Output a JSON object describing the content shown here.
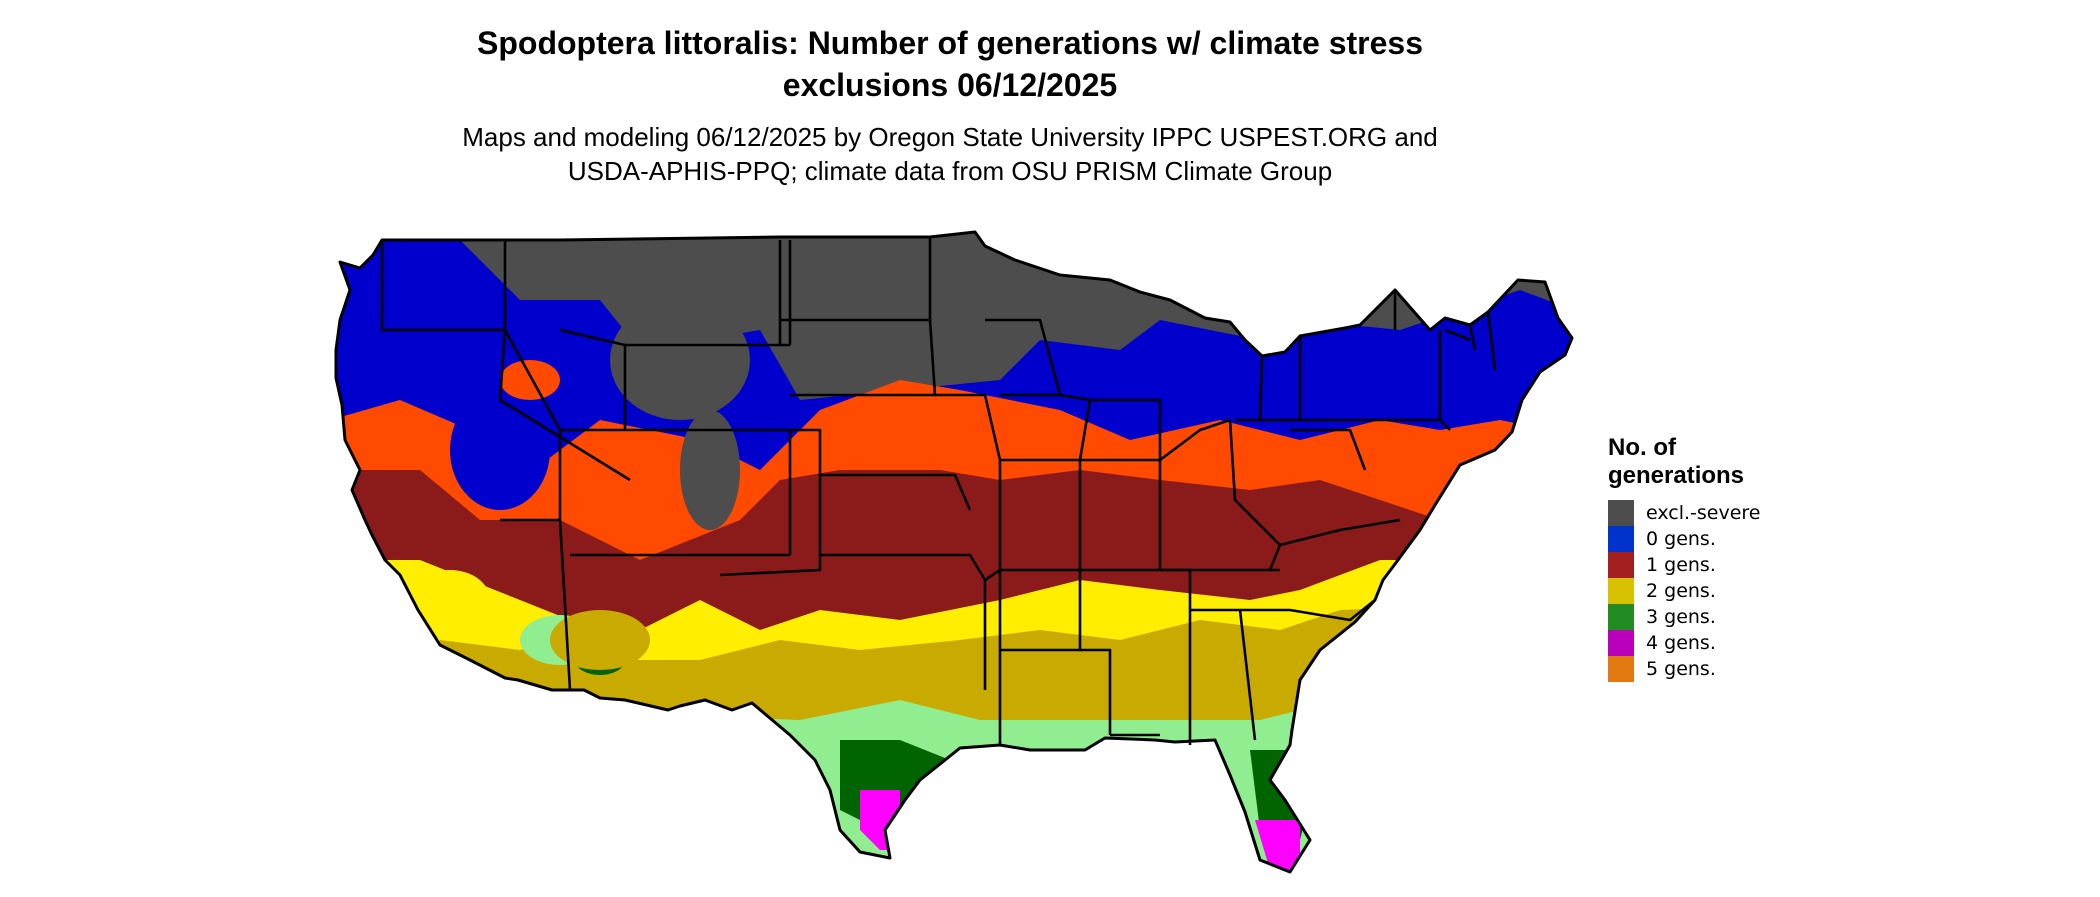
{
  "title_line1": "Spodoptera littoralis: Number of generations w/ climate stress",
  "title_line2": "exclusions 06/12/2025",
  "subtitle_line1": "Maps and modeling 06/12/2025 by Oregon State University IPPC USPEST.ORG and",
  "subtitle_line2": "USDA-APHIS-PPQ; climate data from OSU PRISM Climate Group",
  "legend": {
    "title_line1": "No. of",
    "title_line2": "generations",
    "items": [
      {
        "label": "excl.-severe",
        "color": "#4d4d4d"
      },
      {
        "label": "0 gens.",
        "color": "#0033cc"
      },
      {
        "label": "1 gens.",
        "color": "#a31f1f"
      },
      {
        "label": "2 gens.",
        "color": "#d8c200"
      },
      {
        "label": "3 gens.",
        "color": "#228b22"
      },
      {
        "label": "4 gens.",
        "color": "#bb00bb"
      },
      {
        "label": "5 gens.",
        "color": "#e07a10"
      }
    ]
  },
  "map_colors": {
    "excluded": "#4d4d4d",
    "gen0": "#0000cc",
    "gen1_light": "#ff4a00",
    "gen1": "#8b1a1a",
    "gen2_light": "#ffee00",
    "gen2": "#c8aa00",
    "gen3_light": "#90ee90",
    "gen3": "#006400",
    "gen4": "#ff00ff",
    "border": "#000000"
  }
}
